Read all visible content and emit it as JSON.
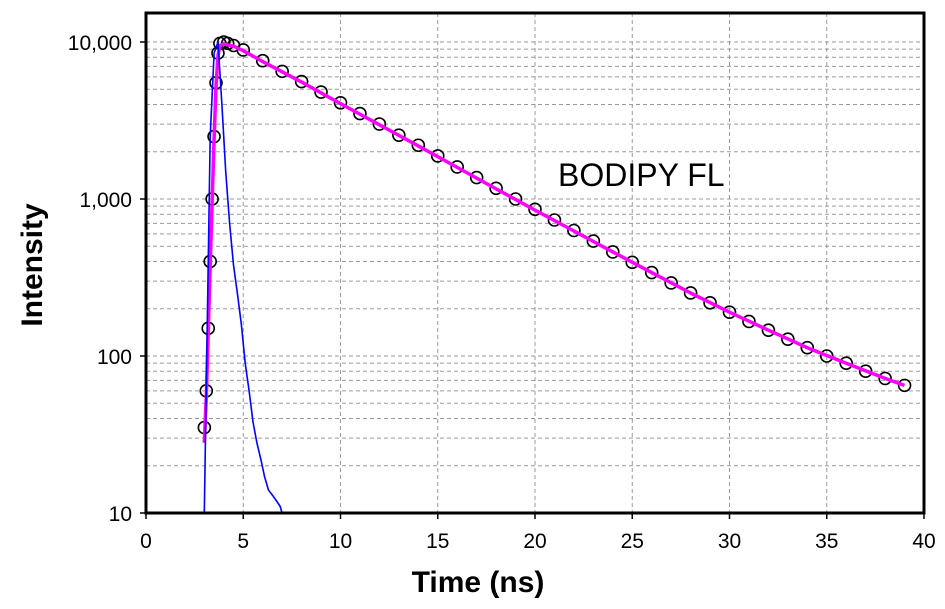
{
  "chart_data": {
    "type": "scatter",
    "title": "",
    "annotation": "BODIPY FL",
    "xlabel": "Time (ns)",
    "ylabel": "Intensity",
    "xlim": [
      0,
      40
    ],
    "ylim": [
      10,
      10000
    ],
    "y_scale": "log",
    "grid": true,
    "legend": "none",
    "x_ticks": [
      {
        "value": 0,
        "label": "0"
      },
      {
        "value": 5,
        "label": "5"
      },
      {
        "value": 10,
        "label": "10"
      },
      {
        "value": 15,
        "label": "15"
      },
      {
        "value": 20,
        "label": "20"
      },
      {
        "value": 25,
        "label": "25"
      },
      {
        "value": 30,
        "label": "30"
      },
      {
        "value": 35,
        "label": "35"
      },
      {
        "value": 40,
        "label": "40"
      }
    ],
    "y_ticks": [
      {
        "value": 10,
        "label": "10"
      },
      {
        "value": 100,
        "label": "100"
      },
      {
        "value": 1000,
        "label": "1,000"
      },
      {
        "value": 10000,
        "label": "10,000"
      }
    ],
    "series": [
      {
        "role": "measured-decay",
        "style": "open-circles",
        "color": "#000000",
        "x": [
          3.0,
          3.1,
          3.2,
          3.3,
          3.4,
          3.5,
          3.6,
          3.7,
          3.8,
          4.0,
          4.2,
          4.5,
          5,
          6,
          7,
          8,
          9,
          10,
          11,
          12,
          13,
          14,
          15,
          16,
          17,
          18,
          19,
          20,
          21,
          22,
          23,
          24,
          25,
          26,
          27,
          28,
          29,
          30,
          31,
          32,
          33,
          34,
          35,
          36,
          37,
          38,
          39
        ],
        "y": [
          35,
          60,
          150,
          400,
          1000,
          2500,
          5500,
          8500,
          9800,
          10000,
          9800,
          9500,
          8900,
          7600,
          6500,
          5600,
          4800,
          4100,
          3500,
          3000,
          2550,
          2200,
          1880,
          1600,
          1370,
          1170,
          1000,
          860,
          735,
          630,
          540,
          460,
          395,
          340,
          292,
          252,
          218,
          190,
          166,
          146,
          128,
          113,
          100,
          90,
          80,
          72,
          65
        ]
      },
      {
        "role": "fit",
        "style": "line",
        "color": "#ff00ff",
        "x": [
          3.0,
          3.1,
          3.2,
          3.3,
          3.4,
          3.5,
          3.6,
          3.7,
          3.8,
          4.0,
          4.5,
          5,
          6,
          8,
          10,
          12,
          14,
          16,
          18,
          20,
          22,
          24,
          26,
          28,
          30,
          32,
          34,
          36,
          38,
          39
        ],
        "y": [
          28,
          55,
          140,
          380,
          950,
          2400,
          5200,
          8200,
          9500,
          9700,
          9400,
          8800,
          7500,
          5550,
          4050,
          2970,
          2180,
          1590,
          1160,
          850,
          625,
          460,
          340,
          252,
          190,
          146,
          113,
          90,
          72,
          65
        ]
      },
      {
        "role": "instrument-response",
        "style": "line",
        "color": "#0000ff",
        "x": [
          3.0,
          3.3,
          3.5,
          3.7,
          3.9,
          4.1,
          4.3,
          4.5,
          4.7,
          4.9,
          5.1,
          5.3,
          5.5,
          5.7,
          5.9,
          6.1,
          6.3,
          6.5,
          6.7,
          6.9,
          7.0
        ],
        "y": [
          10,
          2500,
          8500,
          10000,
          4000,
          1500,
          700,
          380,
          250,
          160,
          90,
          60,
          38,
          28,
          22,
          17,
          14,
          13,
          12,
          11,
          10
        ]
      }
    ]
  }
}
